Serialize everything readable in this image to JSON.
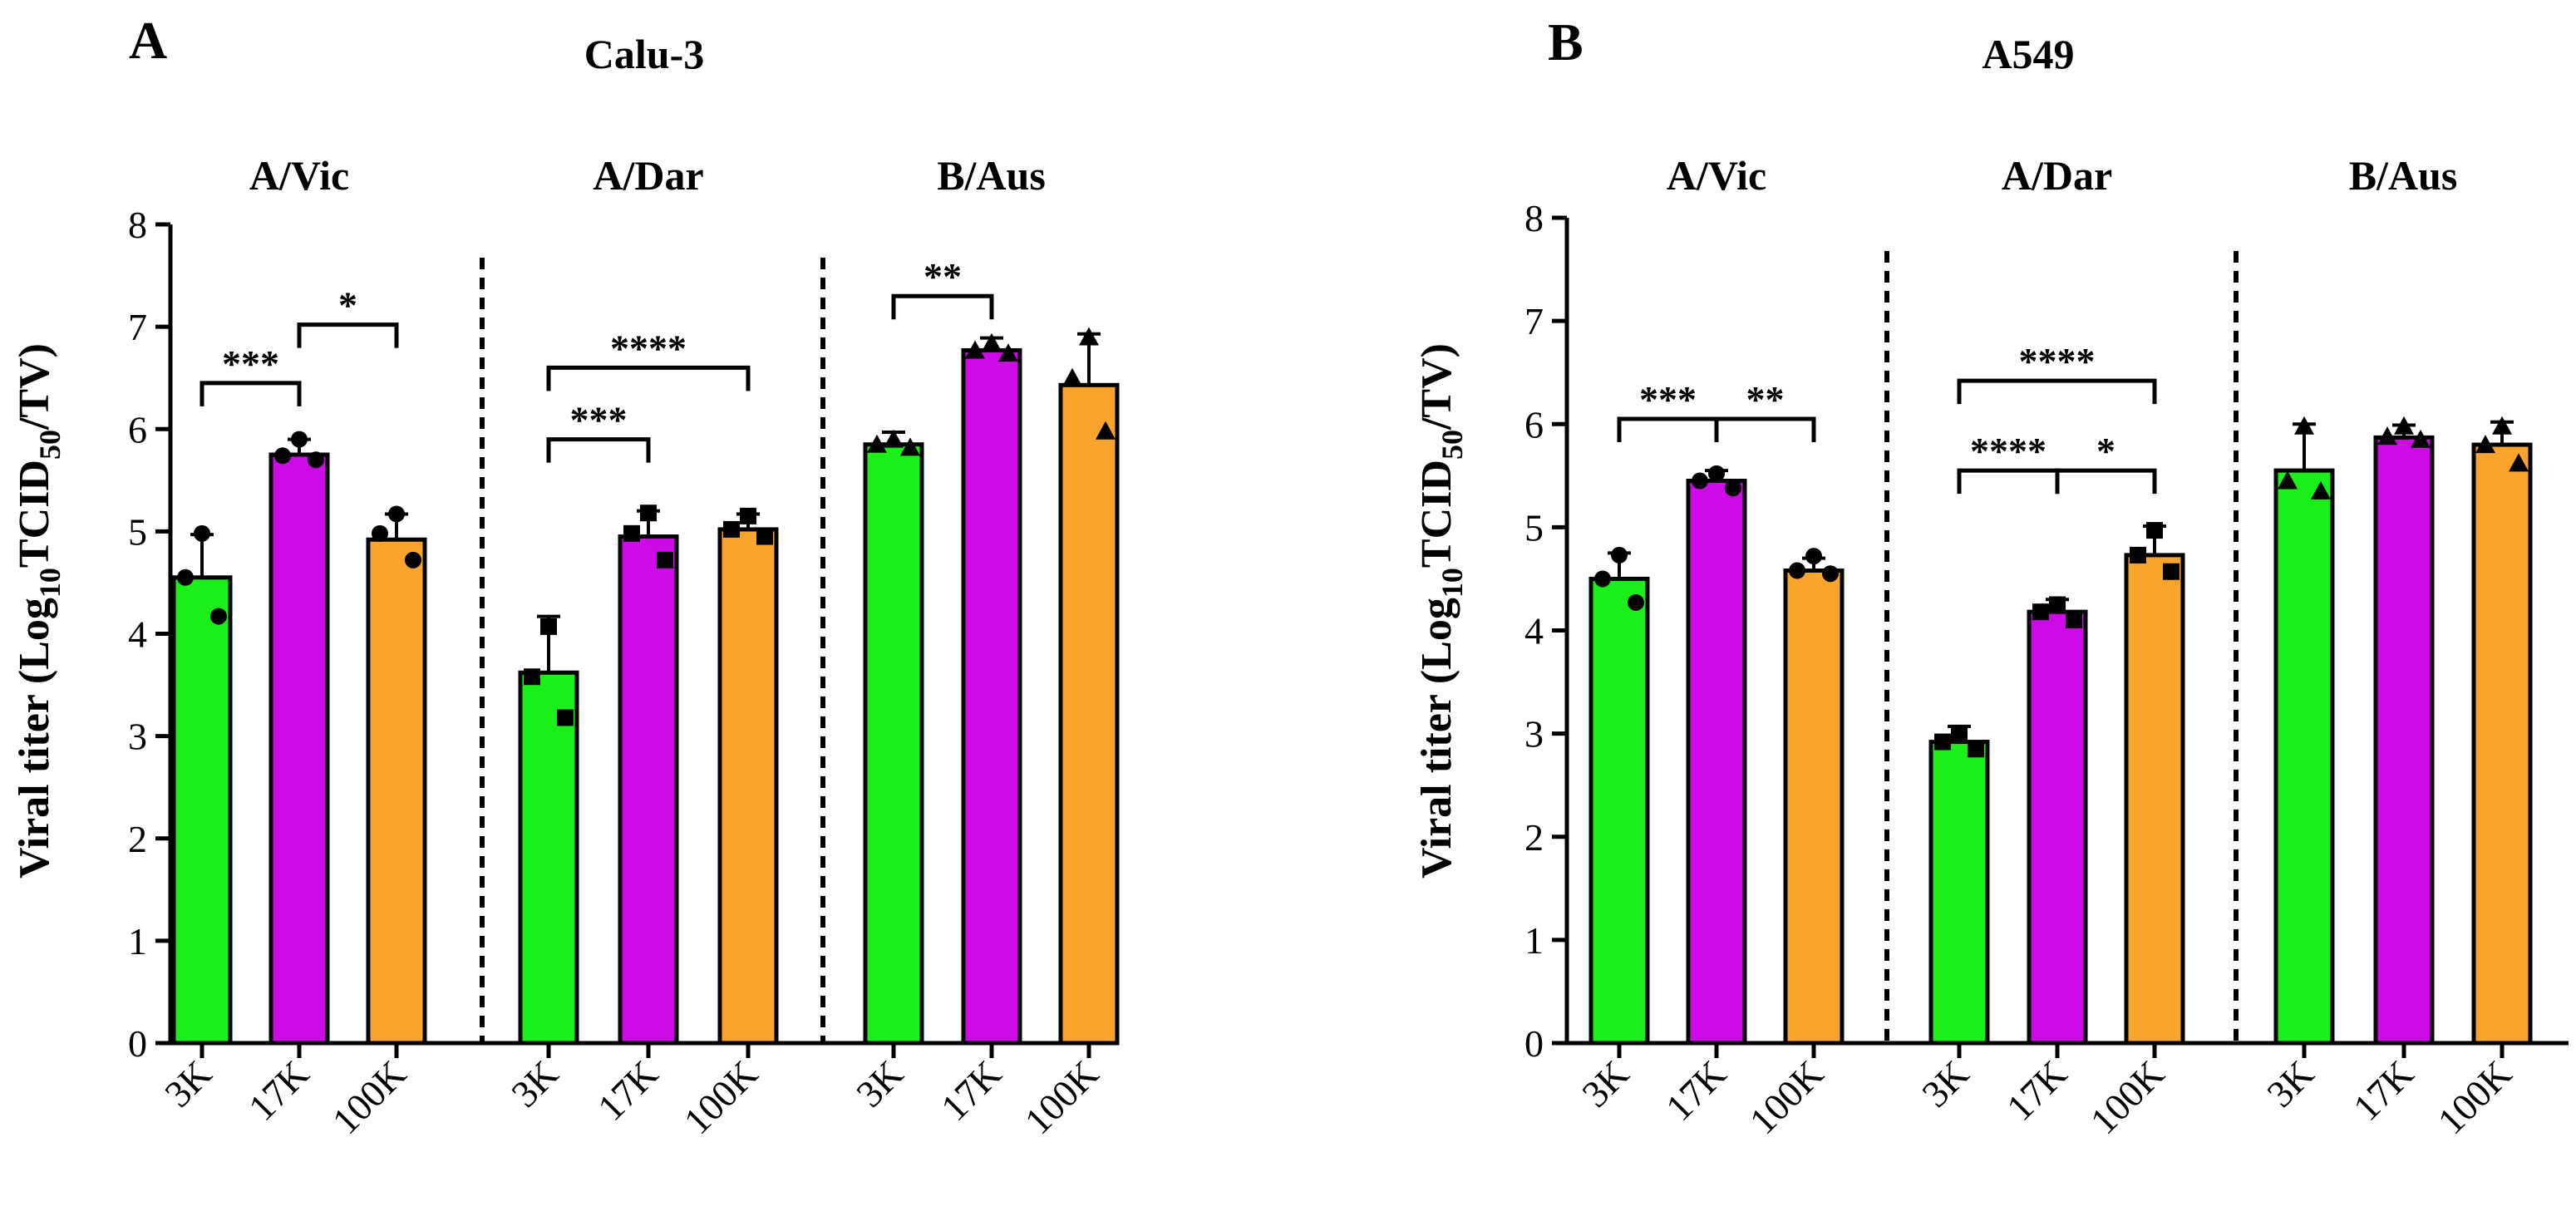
{
  "chart_data": [
    {
      "type": "bar",
      "panel": "A",
      "title": "Calu-3",
      "ylabel": "Viral titer (Log",
      "ylabel_sub": "10",
      "ylabel_rest": "TCID",
      "ylabel_sub2": "50",
      "ylabel_end": "/TV)",
      "ylim": [
        0,
        8
      ],
      "yticks": [
        "0",
        "1",
        "2",
        "3",
        "4",
        "5",
        "6",
        "7",
        "8"
      ],
      "groups": [
        {
          "name": "A/Vic",
          "categories": [
            "3K",
            "17K",
            "100K"
          ],
          "values": [
            4.55,
            5.75,
            4.92
          ],
          "errors": [
            0.42,
            0.15,
            0.25
          ],
          "points": [
            [
              4.98,
              4.55,
              4.17
            ],
            [
              5.9,
              5.74,
              5.7
            ],
            [
              5.17,
              4.98,
              4.72
            ]
          ],
          "markers": [
            "circle",
            "circle",
            "circle"
          ],
          "significance": [
            {
              "from": 0,
              "to": 1,
              "label": "***",
              "level": 6.45
            },
            {
              "from": 1,
              "to": 2,
              "label": "*",
              "level": 7.02
            }
          ]
        },
        {
          "name": "A/Dar",
          "categories": [
            "3K",
            "17K",
            "100K"
          ],
          "values": [
            3.62,
            4.95,
            5.02
          ],
          "errors": [
            0.55,
            0.25,
            0.15
          ],
          "points": [
            [
              4.07,
              3.58,
              3.18
            ],
            [
              5.18,
              4.98,
              4.72
            ],
            [
              5.15,
              5.02,
              4.95
            ]
          ],
          "markers": [
            "square",
            "square",
            "square"
          ],
          "significance": [
            {
              "from": 0,
              "to": 1,
              "label": "***",
              "level": 5.9
            },
            {
              "from": 0,
              "to": 2,
              "label": "****",
              "level": 6.6
            }
          ]
        },
        {
          "name": "B/Aus",
          "categories": [
            "3K",
            "17K",
            "100K"
          ],
          "values": [
            5.85,
            6.77,
            6.43
          ],
          "errors": [
            0.12,
            0.12,
            0.5
          ],
          "points": [
            [
              5.9,
              5.85,
              5.82
            ],
            [
              6.84,
              6.77,
              6.74
            ],
            [
              6.9,
              6.5,
              5.98
            ]
          ],
          "markers": [
            "triangle",
            "triangle",
            "triangle"
          ],
          "significance": [
            {
              "from": 0,
              "to": 1,
              "label": "**",
              "level": 7.3
            }
          ]
        }
      ],
      "colors": [
        "#1aef1a",
        "#cc0be6",
        "#f9a42c"
      ]
    },
    {
      "type": "bar",
      "panel": "B",
      "title": "A549",
      "ylabel": "Viral titer (Log",
      "ylabel_sub": "10",
      "ylabel_rest": "TCID",
      "ylabel_sub2": "50",
      "ylabel_end": "/TV)",
      "ylim": [
        0,
        8
      ],
      "yticks": [
        "0",
        "1",
        "2",
        "3",
        "4",
        "5",
        "6",
        "7",
        "8"
      ],
      "groups": [
        {
          "name": "A/Vic",
          "categories": [
            "3K",
            "17K",
            "100K"
          ],
          "values": [
            4.5,
            5.45,
            4.58
          ],
          "errors": [
            0.25,
            0.1,
            0.12
          ],
          "points": [
            [
              4.73,
              4.5,
              4.27
            ],
            [
              5.52,
              5.45,
              5.38
            ],
            [
              4.72,
              4.58,
              4.55
            ]
          ],
          "markers": [
            "circle",
            "circle",
            "circle"
          ],
          "significance": [
            {
              "from": 0,
              "to": 1,
              "label": "***",
              "level": 6.05
            },
            {
              "from": 1,
              "to": 2,
              "label": "**",
              "level": 6.05
            }
          ]
        },
        {
          "name": "A/Dar",
          "categories": [
            "3K",
            "17K",
            "100K"
          ],
          "values": [
            2.92,
            4.18,
            4.73
          ],
          "errors": [
            0.15,
            0.12,
            0.28
          ],
          "points": [
            [
              3.0,
              2.92,
              2.85
            ],
            [
              4.25,
              4.18,
              4.1
            ],
            [
              4.97,
              4.73,
              4.57
            ]
          ],
          "markers": [
            "square",
            "square",
            "square"
          ],
          "significance": [
            {
              "from": 0,
              "to": 1,
              "label": "****",
              "level": 5.55
            },
            {
              "from": 1,
              "to": 2,
              "label": "*",
              "level": 5.55
            },
            {
              "from": 0,
              "to": 2,
              "label": "****",
              "level": 6.42
            }
          ]
        },
        {
          "name": "B/Aus",
          "categories": [
            "3K",
            "17K",
            "100K"
          ],
          "values": [
            5.55,
            5.87,
            5.8
          ],
          "errors": [
            0.45,
            0.12,
            0.22
          ],
          "points": [
            [
              5.98,
              5.45,
              5.35
            ],
            [
              5.98,
              5.88,
              5.85
            ],
            [
              5.98,
              5.8,
              5.62
            ]
          ],
          "markers": [
            "triangle",
            "triangle",
            "triangle"
          ],
          "significance": []
        }
      ],
      "colors": [
        "#1aef1a",
        "#cc0be6",
        "#f9a42c"
      ]
    }
  ]
}
